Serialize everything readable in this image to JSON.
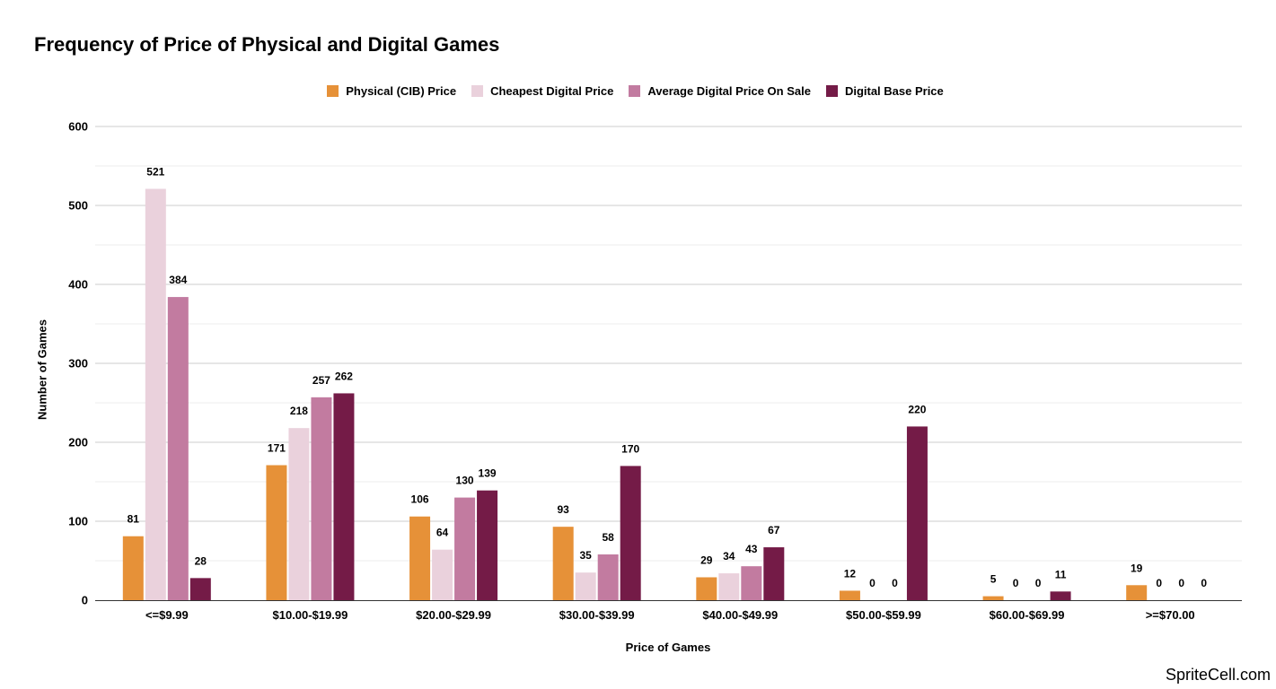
{
  "chart_data": {
    "type": "bar",
    "title": "Frequency of Price of Physical and Digital Games",
    "xlabel": "Price of Games",
    "ylabel": "Number of Games",
    "ylim": [
      0,
      600
    ],
    "yticks": [
      0,
      100,
      200,
      300,
      400,
      500,
      600
    ],
    "grid": true,
    "legend_position": "top-center",
    "categories": [
      "<=$9.99",
      "$10.00-$19.99",
      "$20.00-$29.99",
      "$30.00-$39.99",
      "$40.00-$49.99",
      "$50.00-$59.99",
      "$60.00-$69.99",
      ">=$70.00"
    ],
    "series": [
      {
        "name": "Physical (CIB) Price",
        "color": "#e69138",
        "values": [
          81,
          171,
          106,
          93,
          29,
          12,
          5,
          19
        ]
      },
      {
        "name": "Cheapest Digital Price",
        "color": "#ead1dc",
        "values": [
          521,
          218,
          64,
          35,
          34,
          0,
          0,
          0
        ]
      },
      {
        "name": "Average Digital Price On Sale",
        "color": "#c27ba0",
        "values": [
          384,
          257,
          130,
          58,
          43,
          0,
          0,
          0
        ]
      },
      {
        "name": "Digital Base Price",
        "color": "#741b47",
        "values": [
          28,
          262,
          139,
          170,
          67,
          220,
          11,
          0
        ]
      }
    ]
  },
  "watermark": "SpriteCell.com"
}
